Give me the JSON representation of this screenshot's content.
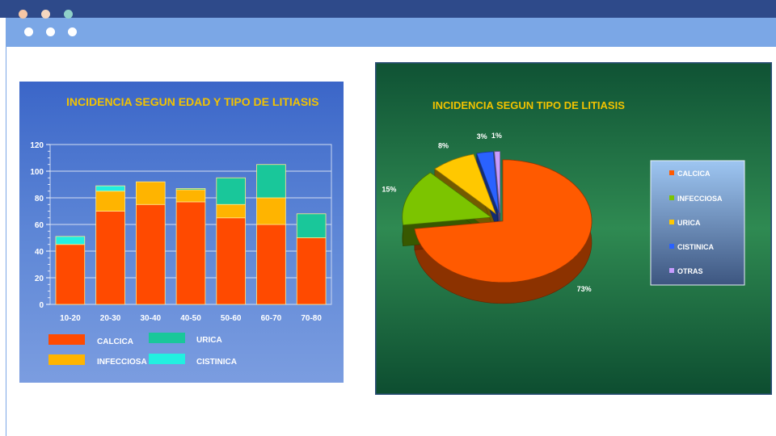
{
  "theme": {
    "dots_top": [
      "#f5c6a5",
      "#f5d7c0",
      "#8fd1c9"
    ],
    "dots_sub": [
      "#ffffff",
      "#ffffff",
      "#ffffff"
    ]
  },
  "chart_data": [
    {
      "type": "bar",
      "stacked": true,
      "title": "INCIDENCIA SEGUN EDAD Y TIPO DE LITIASIS",
      "categories": [
        "10-20",
        "20-30",
        "30-40",
        "40-50",
        "50-60",
        "60-70",
        "70-80"
      ],
      "series": [
        {
          "name": "CALCICA",
          "color": "#ff4a00",
          "values": [
            45,
            70,
            75,
            77,
            65,
            60,
            50
          ]
        },
        {
          "name": "INFECCIOSA",
          "color": "#ffb400",
          "values": [
            0,
            15,
            17,
            9,
            10,
            20,
            0
          ]
        },
        {
          "name": "URICA",
          "color": "#19c79a",
          "values": [
            0,
            0,
            0,
            1,
            20,
            25,
            18
          ]
        },
        {
          "name": "CISTINICA",
          "color": "#22f0e0",
          "values": [
            6,
            4,
            0,
            0,
            0,
            0,
            0
          ]
        }
      ],
      "yticks": [
        "0",
        "20",
        "40",
        "60",
        "80",
        "100",
        "120"
      ],
      "ylim": [
        0,
        120
      ],
      "grid": true,
      "legend_position": "bottom"
    },
    {
      "type": "pie",
      "title": "INCIDENCIA SEGUN TIPO DE LITIASIS",
      "labels": [
        "CALCICA",
        "INFECCIOSA",
        "URICA",
        "CISTINICA",
        "OTRAS"
      ],
      "values": [
        73,
        15,
        8,
        3,
        1
      ],
      "value_labels": [
        "73%",
        "15%",
        "8%",
        "3%",
        "1%"
      ],
      "colors": [
        "#ff5a00",
        "#7cc400",
        "#ffc800",
        "#2a62ff",
        "#c79cff"
      ],
      "three_d": true,
      "legend_position": "right"
    }
  ]
}
